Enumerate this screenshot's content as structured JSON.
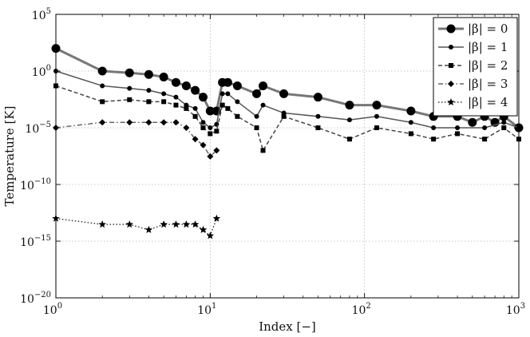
{
  "chart_data": {
    "type": "line",
    "xlabel": "Index [−]",
    "ylabel": "Temperature [K]",
    "xscale": "log",
    "yscale": "log",
    "xlim": [
      1,
      1000
    ],
    "ylim": [
      1e-20,
      100000.0
    ],
    "grid": true,
    "legend_position": "top-right",
    "x_ticks": [
      {
        "value": 1,
        "base": "10",
        "exp": "0"
      },
      {
        "value": 10,
        "base": "10",
        "exp": "1"
      },
      {
        "value": 100,
        "base": "10",
        "exp": "2"
      },
      {
        "value": 1000,
        "base": "10",
        "exp": "3"
      }
    ],
    "y_ticks": [
      {
        "value": 100000.0,
        "base": "10",
        "exp": "5"
      },
      {
        "value": 1,
        "base": "10",
        "exp": "0"
      },
      {
        "value": 1e-05,
        "base": "10",
        "exp": "−5"
      },
      {
        "value": 1e-10,
        "base": "10",
        "exp": "−10"
      },
      {
        "value": 1e-15,
        "base": "10",
        "exp": "−15"
      },
      {
        "value": 1e-20,
        "base": "10",
        "exp": "−20"
      }
    ],
    "series": [
      {
        "name": "|β| = 0",
        "color": "#777777",
        "marker": "circle",
        "dash": "solid",
        "stroke_width": 3,
        "x": [
          1,
          2,
          3,
          4,
          5,
          6,
          7,
          8,
          9,
          10,
          11,
          12,
          13,
          15,
          20,
          22,
          30,
          50,
          80,
          120,
          200,
          280,
          400,
          500,
          600,
          700,
          800,
          1000
        ],
        "y": [
          100,
          1,
          0.7,
          0.5,
          0.3,
          0.1,
          0.05,
          0.02,
          0.005,
          0.0003,
          0.0003,
          0.1,
          0.1,
          0.05,
          0.01,
          0.05,
          0.01,
          0.005,
          0.001,
          0.001,
          0.0003,
          0.0001,
          0.0001,
          3e-05,
          0.0001,
          3e-05,
          0.0001,
          1e-05
        ]
      },
      {
        "name": "|β| = 1",
        "color": "#555555",
        "marker": "dot",
        "dash": "solid",
        "stroke_width": 1.5,
        "x": [
          1,
          2,
          3,
          4,
          5,
          6,
          7,
          8,
          9,
          10,
          11,
          12,
          13,
          15,
          20,
          22,
          30,
          50,
          80,
          120,
          200,
          280,
          400,
          600,
          800,
          1000
        ],
        "y": [
          1,
          0.05,
          0.03,
          0.02,
          0.01,
          0.005,
          0.001,
          0.0005,
          3e-05,
          1e-05,
          2e-05,
          0.01,
          0.01,
          0.002,
          0.0001,
          0.001,
          0.0002,
          0.0001,
          5e-05,
          0.0001,
          3e-05,
          1e-05,
          1e-05,
          1e-05,
          3e-05,
          1e-05
        ]
      },
      {
        "name": "|β| = 2",
        "color": "#444444",
        "marker": "square",
        "dash": "dashed",
        "stroke_width": 1.5,
        "x": [
          1,
          2,
          3,
          4,
          5,
          6,
          7,
          8,
          9,
          10,
          11,
          12,
          13,
          15,
          20,
          22,
          30,
          50,
          80,
          120,
          200,
          280,
          400,
          600,
          800,
          1000
        ],
        "y": [
          0.05,
          0.002,
          0.003,
          0.002,
          0.002,
          0.001,
          0.0005,
          0.0001,
          1e-05,
          3e-06,
          5e-06,
          0.001,
          0.0005,
          0.0001,
          1e-05,
          1e-07,
          0.0001,
          1e-05,
          1e-06,
          1e-05,
          3e-06,
          1e-06,
          3e-06,
          1e-06,
          1e-05,
          1e-06
        ]
      },
      {
        "name": "|β| = 3",
        "color": "#666666",
        "marker": "diamond",
        "dash": "dashdot",
        "stroke_width": 1.5,
        "x": [
          1,
          2,
          3,
          4,
          5,
          6,
          7,
          8,
          9,
          10,
          11
        ],
        "y": [
          1e-05,
          3e-05,
          3e-05,
          3e-05,
          3e-05,
          3e-05,
          1e-05,
          1e-06,
          3e-07,
          3e-08,
          1e-07
        ]
      },
      {
        "name": "|β| = 4",
        "color": "#111111",
        "marker": "star",
        "dash": "dotted",
        "stroke_width": 1.2,
        "x": [
          1,
          2,
          3,
          4,
          5,
          6,
          7,
          8,
          9,
          10,
          11
        ],
        "y": [
          1e-13,
          3e-14,
          3e-14,
          1e-14,
          3e-14,
          3e-14,
          3e-14,
          3e-14,
          1e-14,
          3e-15,
          1e-13
        ]
      }
    ]
  }
}
